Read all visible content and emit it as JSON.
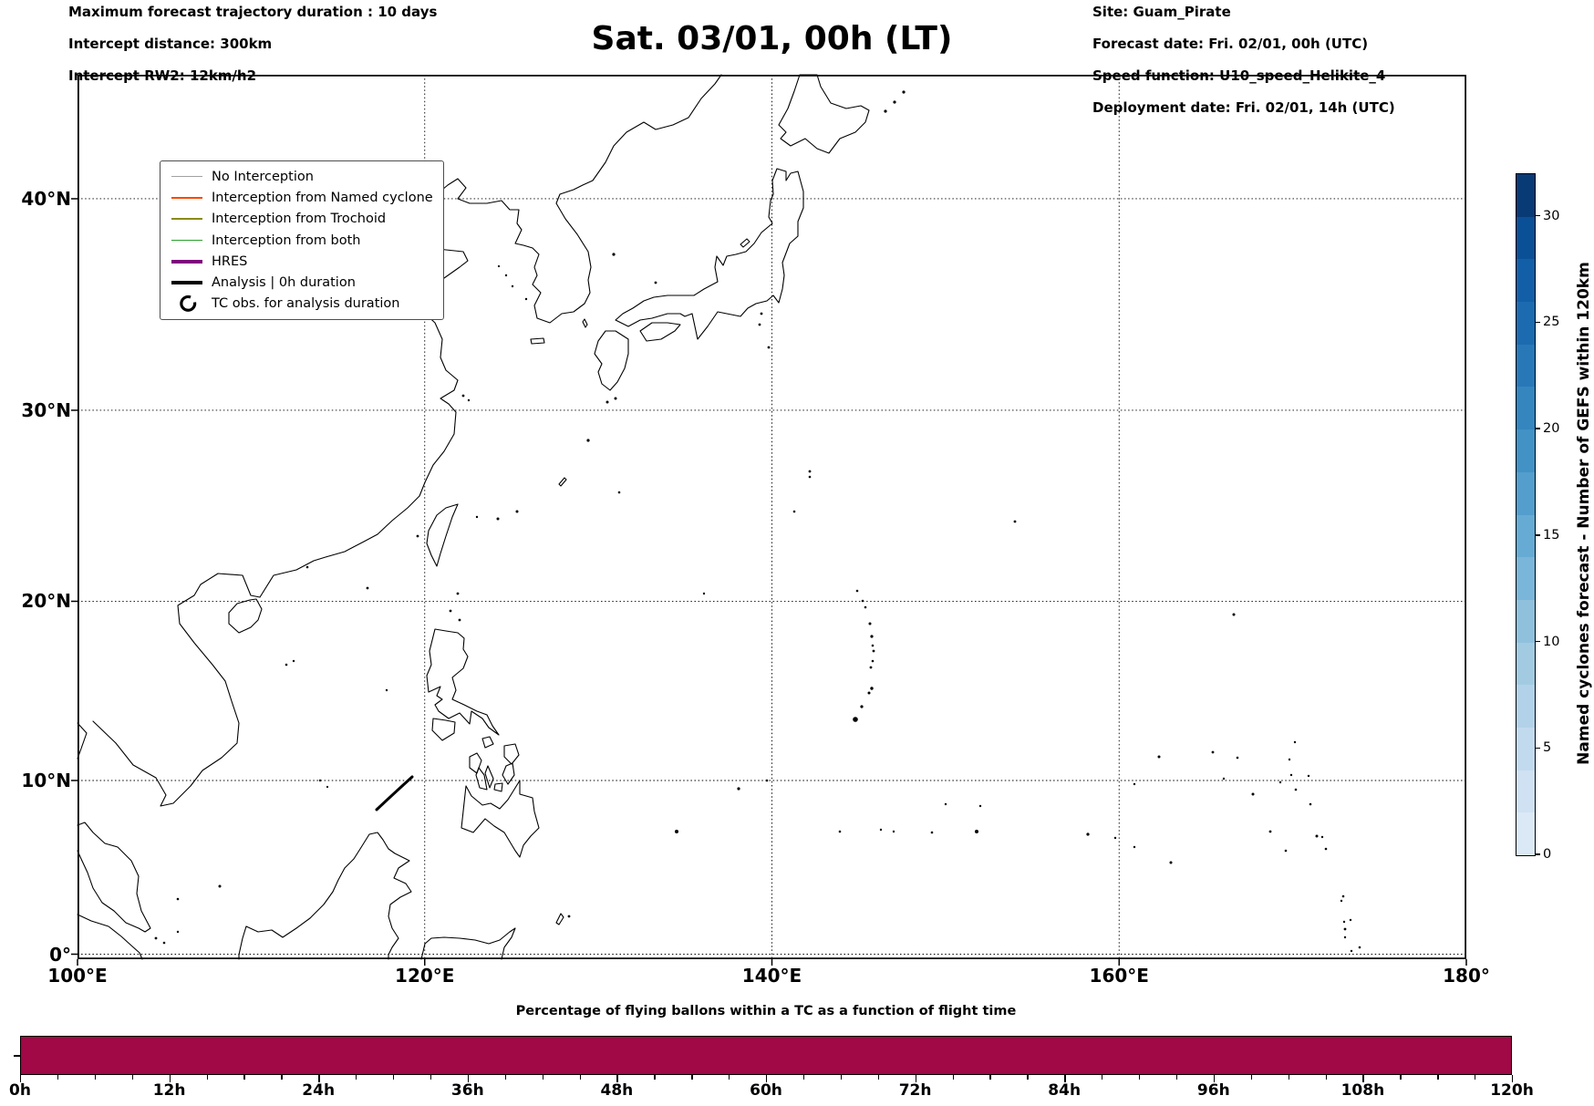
{
  "header": {
    "left_lines": [
      "Maximum forecast trajectory duration : 10 days",
      "Intercept distance: 300km",
      "Intercept RW2: 12km/h2"
    ],
    "title": "Sat. 03/01, 00h (LT)",
    "right_lines": [
      "Site: Guam_Pirate",
      "Forecast date: Fri. 02/01, 00h (UTC)",
      "Speed function: U10_speed_Helikite_4",
      "Deployment date: Fri. 02/01, 14h (UTC)"
    ]
  },
  "map": {
    "projection": "mercator",
    "lon_ticks": [
      {
        "label": "100°E",
        "lon": 100
      },
      {
        "label": "120°E",
        "lon": 120
      },
      {
        "label": "140°E",
        "lon": 140
      },
      {
        "label": "160°E",
        "lon": 160
      },
      {
        "label": "180°",
        "lon": 180
      }
    ],
    "lat_ticks": [
      {
        "label": "0°",
        "lat": 0
      },
      {
        "label": "10°N",
        "lat": 10
      },
      {
        "label": "20°N",
        "lat": 20
      },
      {
        "label": "30°N",
        "lat": 30
      },
      {
        "label": "40°N",
        "lat": 40
      }
    ],
    "grid_lons": [
      120,
      140,
      160
    ],
    "grid_lats": [
      0,
      10,
      20,
      30,
      40
    ],
    "legend": {
      "items": [
        {
          "label": "No Interception",
          "color": "#a0a0a0",
          "lw": 1.5,
          "type": "line"
        },
        {
          "label": "Interception from Named cyclone",
          "color": "#ff4500",
          "lw": 1.5,
          "type": "line"
        },
        {
          "label": "Interception from Trochoid",
          "color": "#8a8a00",
          "lw": 1.5,
          "type": "line"
        },
        {
          "label": "Interception from both",
          "color": "#2ca02c",
          "lw": 1.5,
          "type": "line"
        },
        {
          "label": "HRES",
          "color": "#800080",
          "lw": 4.5,
          "type": "line"
        },
        {
          "label": "Analysis | 0h duration",
          "color": "#000000",
          "lw": 4.5,
          "type": "line"
        },
        {
          "label": "TC obs. for analysis duration",
          "color": "#000000",
          "lw": 2.5,
          "type": "cyclone-marker"
        }
      ]
    }
  },
  "colorbar": {
    "label": "Named cyclones forecast - Number of GEFS within 120km",
    "vmin": 0,
    "vmax": 32,
    "ticks": [
      0,
      5,
      10,
      15,
      20,
      25,
      30
    ],
    "colormap": "Blues",
    "segment_colors": [
      "#dbe9f6",
      "#cfe1f2",
      "#c2daee",
      "#b2d2e9",
      "#a2cbe2",
      "#8fc1dd",
      "#7ab6d9",
      "#66abd4",
      "#539ecc",
      "#4292c6",
      "#3585bf",
      "#2878b8",
      "#1c6bb0",
      "#125fa7",
      "#0a5096",
      "#083a76"
    ]
  },
  "bottom_chart": {
    "title": "Percentage of flying ballons within a TC as a function of flight time",
    "bar_color": "#a00846",
    "major_ticks": [
      {
        "label": "0h",
        "value": 0
      },
      {
        "label": "12h",
        "value": 12
      },
      {
        "label": "24h",
        "value": 24
      },
      {
        "label": "36h",
        "value": 36
      },
      {
        "label": "48h",
        "value": 48
      },
      {
        "label": "60h",
        "value": 60
      },
      {
        "label": "72h",
        "value": 72
      },
      {
        "label": "84h",
        "value": 84
      },
      {
        "label": "96h",
        "value": 96
      },
      {
        "label": "108h",
        "value": 108
      },
      {
        "label": "120h",
        "value": 120
      }
    ],
    "minor_step_h": 3,
    "x_range_h": [
      0,
      120
    ]
  },
  "chart_data": [
    {
      "type": "table",
      "title": "map overview",
      "note": "Geographic Mercator map, coastlines only, no trajectory lines plotted",
      "lon_range_deg_e": [
        100,
        180
      ],
      "lat_range_deg_n": [
        0,
        45.3
      ],
      "xlabel_ticks": [
        "100°E",
        "120°E",
        "140°E",
        "160°E",
        "180°"
      ],
      "ylabel_ticks": [
        "0°",
        "10°N",
        "20°N",
        "30°N",
        "40°N"
      ],
      "grid": true
    },
    {
      "type": "bar",
      "title": "Percentage of flying ballons within a TC as a function of flight time",
      "x": [
        0,
        12,
        24,
        36,
        48,
        60,
        72,
        84,
        96,
        108,
        120
      ],
      "x_unit": "h",
      "values_fraction_of_axis_height": [
        1,
        1,
        1,
        1,
        1,
        1,
        1,
        1,
        1,
        1,
        1
      ],
      "note": "single solid bar at constant full height from 0h to 120h",
      "color": "#a00846",
      "grid": false
    },
    {
      "type": "heatmap",
      "title": "colorbar scale",
      "label": "Named cyclones forecast - Number of GEFS within 120km",
      "ticks": [
        0,
        5,
        10,
        15,
        20,
        25,
        30
      ],
      "range": [
        0,
        32
      ],
      "colormap": "Blues",
      "n_segments": 16
    }
  ]
}
